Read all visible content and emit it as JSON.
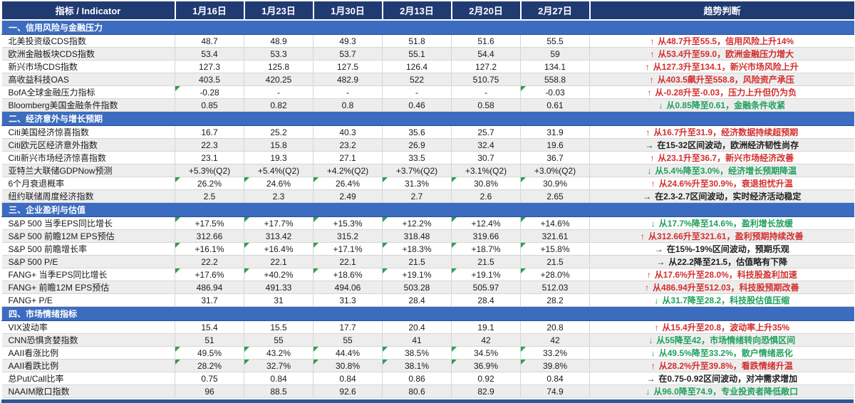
{
  "header": {
    "indicator": "指标 / Indicator",
    "dates": [
      "1月16日",
      "1月23日",
      "1月30日",
      "2月13日",
      "2月20日",
      "2月27日"
    ],
    "trend": "趋势判断"
  },
  "arrows": {
    "up": "↑",
    "down": "↓",
    "flat": "→"
  },
  "colors": {
    "header_bg": "#203a72",
    "section_bg": "#3c6cc0",
    "zebra": "#ededed",
    "trend_up": "#d32f2f",
    "trend_down": "#1fa15d",
    "trend_flat": "#1f1f1f",
    "flag_marker": "#2f9e4c"
  },
  "sections": [
    {
      "title": "一、信用风险与金融压力",
      "rows": [
        {
          "label": "北美投资级CDS指数",
          "values": [
            "48.7",
            "48.9",
            "49.3",
            "51.8",
            "51.6",
            "55.5"
          ],
          "dir": "up",
          "trend": "从48.7升至55.5，信用风险上升14%",
          "flags": []
        },
        {
          "label": "欧洲金融板块CDS指数",
          "values": [
            "53.4",
            "53.3",
            "53.7",
            "55.1",
            "54.4",
            "59"
          ],
          "dir": "up",
          "trend": "从53.4升至59.0，欧洲金融压力增大",
          "flags": []
        },
        {
          "label": "新兴市场CDS指数",
          "values": [
            "127.3",
            "125.8",
            "127.5",
            "126.4",
            "127.2",
            "134.1"
          ],
          "dir": "up",
          "trend": "从127.3升至134.1，新兴市场风险上升",
          "flags": []
        },
        {
          "label": "高收益科技OAS",
          "values": [
            "403.5",
            "420.25",
            "482.9",
            "522",
            "510.75",
            "558.8"
          ],
          "dir": "up",
          "trend": "从403.5飙升至558.8，风险资产承压",
          "flags": []
        },
        {
          "label": "BofA全球金融压力指标",
          "values": [
            "-0.28",
            "-",
            "-",
            "-",
            "-",
            "-0.03"
          ],
          "dir": "up",
          "trend": "从-0.28升至-0.03，压力上升但仍为负",
          "flags": [
            0,
            5
          ]
        },
        {
          "label": "Bloomberg美国金融条件指数",
          "values": [
            "0.85",
            "0.82",
            "0.8",
            "0.46",
            "0.58",
            "0.61"
          ],
          "dir": "down",
          "trend": "从0.85降至0.61，金融条件收紧",
          "flags": []
        }
      ]
    },
    {
      "title": "二、经济意外与增长预期",
      "rows": [
        {
          "label": "Citi美国经济惊喜指数",
          "values": [
            "16.7",
            "25.2",
            "40.3",
            "35.6",
            "25.7",
            "31.9"
          ],
          "dir": "up",
          "trend": "从16.7升至31.9，经济数据持续超预期",
          "flags": []
        },
        {
          "label": "Citi欧元区经济意外指数",
          "values": [
            "22.3",
            "15.8",
            "23.2",
            "26.9",
            "32.4",
            "19.6"
          ],
          "dir": "flat",
          "trend": "在15-32区间波动，欧洲经济韧性尚存",
          "flags": []
        },
        {
          "label": "Citi新兴市场经济惊喜指数",
          "values": [
            "23.1",
            "19.3",
            "27.1",
            "33.5",
            "30.7",
            "36.7"
          ],
          "dir": "up",
          "trend": "从23.1升至36.7，新兴市场经济改善",
          "flags": []
        },
        {
          "label": "亚特兰大联储GDPNow预测",
          "values": [
            "+5.3%(Q2)",
            "+5.4%(Q2)",
            "+4.2%(Q2)",
            "+3.7%(Q2)",
            "+3.1%(Q2)",
            "+3.0%(Q2)"
          ],
          "dir": "down",
          "trend": "从5.4%降至3.0%，经济增长预期降温",
          "flags": []
        },
        {
          "label": "6个月衰退概率",
          "values": [
            "26.2%",
            "24.6%",
            "26.4%",
            "31.3%",
            "30.8%",
            "30.9%"
          ],
          "dir": "up",
          "trend": "从24.6%升至30.9%，衰退担忧升温",
          "flags": [
            0,
            1,
            2,
            3,
            4,
            5
          ]
        },
        {
          "label": "纽约联储周度经济指数",
          "values": [
            "2.5",
            "2.3",
            "2.49",
            "2.7",
            "2.6",
            "2.65"
          ],
          "dir": "flat",
          "trend": "在2.3-2.7区间波动，实时经济活动稳定",
          "flags": []
        }
      ]
    },
    {
      "title": "三、企业盈利与估值",
      "rows": [
        {
          "label": "S&P 500 当季EPS同比增长",
          "values": [
            "+17.5%",
            "+17.7%",
            "+15.3%",
            "+12.2%",
            "+12.4%",
            "+14.6%"
          ],
          "dir": "down",
          "trend": "从17.7%降至14.6%，盈利增长放缓",
          "flags": [
            0,
            1,
            2,
            3,
            4,
            5
          ]
        },
        {
          "label": "S&P 500 前瞻12M EPS预估",
          "values": [
            "312.66",
            "313.42",
            "315.2",
            "318.48",
            "319.66",
            "321.61"
          ],
          "dir": "up",
          "trend": "从312.66升至321.61，盈利预期持续改善",
          "flags": []
        },
        {
          "label": "S&P 500 前瞻增长率",
          "values": [
            "+16.1%",
            "+16.4%",
            "+17.1%",
            "+18.3%",
            "+18.7%",
            "+15.8%"
          ],
          "dir": "flat",
          "trend": "在15%-19%区间波动，预期乐观",
          "flags": [
            0,
            1,
            2,
            3,
            4,
            5
          ]
        },
        {
          "label": "S&P 500 P/E",
          "values": [
            "22.2",
            "22.1",
            "22.1",
            "21.5",
            "21.5",
            "21.5"
          ],
          "dir": "flat",
          "trend": "从22.2降至21.5，估值略有下降",
          "flags": []
        },
        {
          "label": "FANG+ 当季EPS同比增长",
          "values": [
            "+17.6%",
            "+40.2%",
            "+18.6%",
            "+19.1%",
            "+19.1%",
            "+28.0%"
          ],
          "dir": "up",
          "trend": "从17.6%升至28.0%，科技股盈利加速",
          "flags": [
            0,
            1,
            2,
            3,
            4,
            5
          ]
        },
        {
          "label": "FANG+ 前瞻12M EPS预估",
          "values": [
            "486.94",
            "491.33",
            "494.06",
            "503.28",
            "505.97",
            "512.03"
          ],
          "dir": "up",
          "trend": "从486.94升至512.03，科技股预期改善",
          "flags": []
        },
        {
          "label": "FANG+ P/E",
          "values": [
            "31.7",
            "31",
            "31.3",
            "28.4",
            "28.4",
            "28.2"
          ],
          "dir": "down",
          "trend": "从31.7降至28.2，科技股估值压缩",
          "flags": []
        }
      ]
    },
    {
      "title": "四、市场情绪指标",
      "rows": [
        {
          "label": "VIX波动率",
          "values": [
            "15.4",
            "15.5",
            "17.7",
            "20.4",
            "19.1",
            "20.8"
          ],
          "dir": "up",
          "trend": "从15.4升至20.8，波动率上升35%",
          "flags": []
        },
        {
          "label": "CNN恐惧贪婪指数",
          "values": [
            "51",
            "55",
            "55",
            "41",
            "42",
            "42"
          ],
          "dir": "down",
          "trend": "从55降至42，市场情绪转向恐惧区间",
          "flags": []
        },
        {
          "label": "AAII看涨比例",
          "values": [
            "49.5%",
            "43.2%",
            "44.4%",
            "38.5%",
            "34.5%",
            "33.2%"
          ],
          "dir": "down",
          "trend": "从49.5%降至33.2%，散户情绪恶化",
          "flags": [
            0,
            1,
            2,
            3,
            4,
            5
          ]
        },
        {
          "label": "AAII看跌比例",
          "values": [
            "28.2%",
            "32.7%",
            "30.8%",
            "38.1%",
            "36.9%",
            "39.8%"
          ],
          "dir": "up",
          "trend": "从28.2%升至39.8%，看跌情绪升温",
          "flags": [
            0,
            1,
            2,
            3,
            4,
            5
          ]
        },
        {
          "label": "总Put/Call比率",
          "values": [
            "0.75",
            "0.84",
            "0.84",
            "0.86",
            "0.92",
            "0.84"
          ],
          "dir": "flat",
          "trend": "在0.75-0.92区间波动，对冲需求增加",
          "flags": []
        },
        {
          "label": "NAAIM敞口指数",
          "values": [
            "96",
            "88.5",
            "92.6",
            "80.6",
            "82.9",
            "74.9"
          ],
          "dir": "down",
          "trend": "从96.0降至74.9，专业投资者降低敞口",
          "flags": []
        }
      ]
    }
  ]
}
